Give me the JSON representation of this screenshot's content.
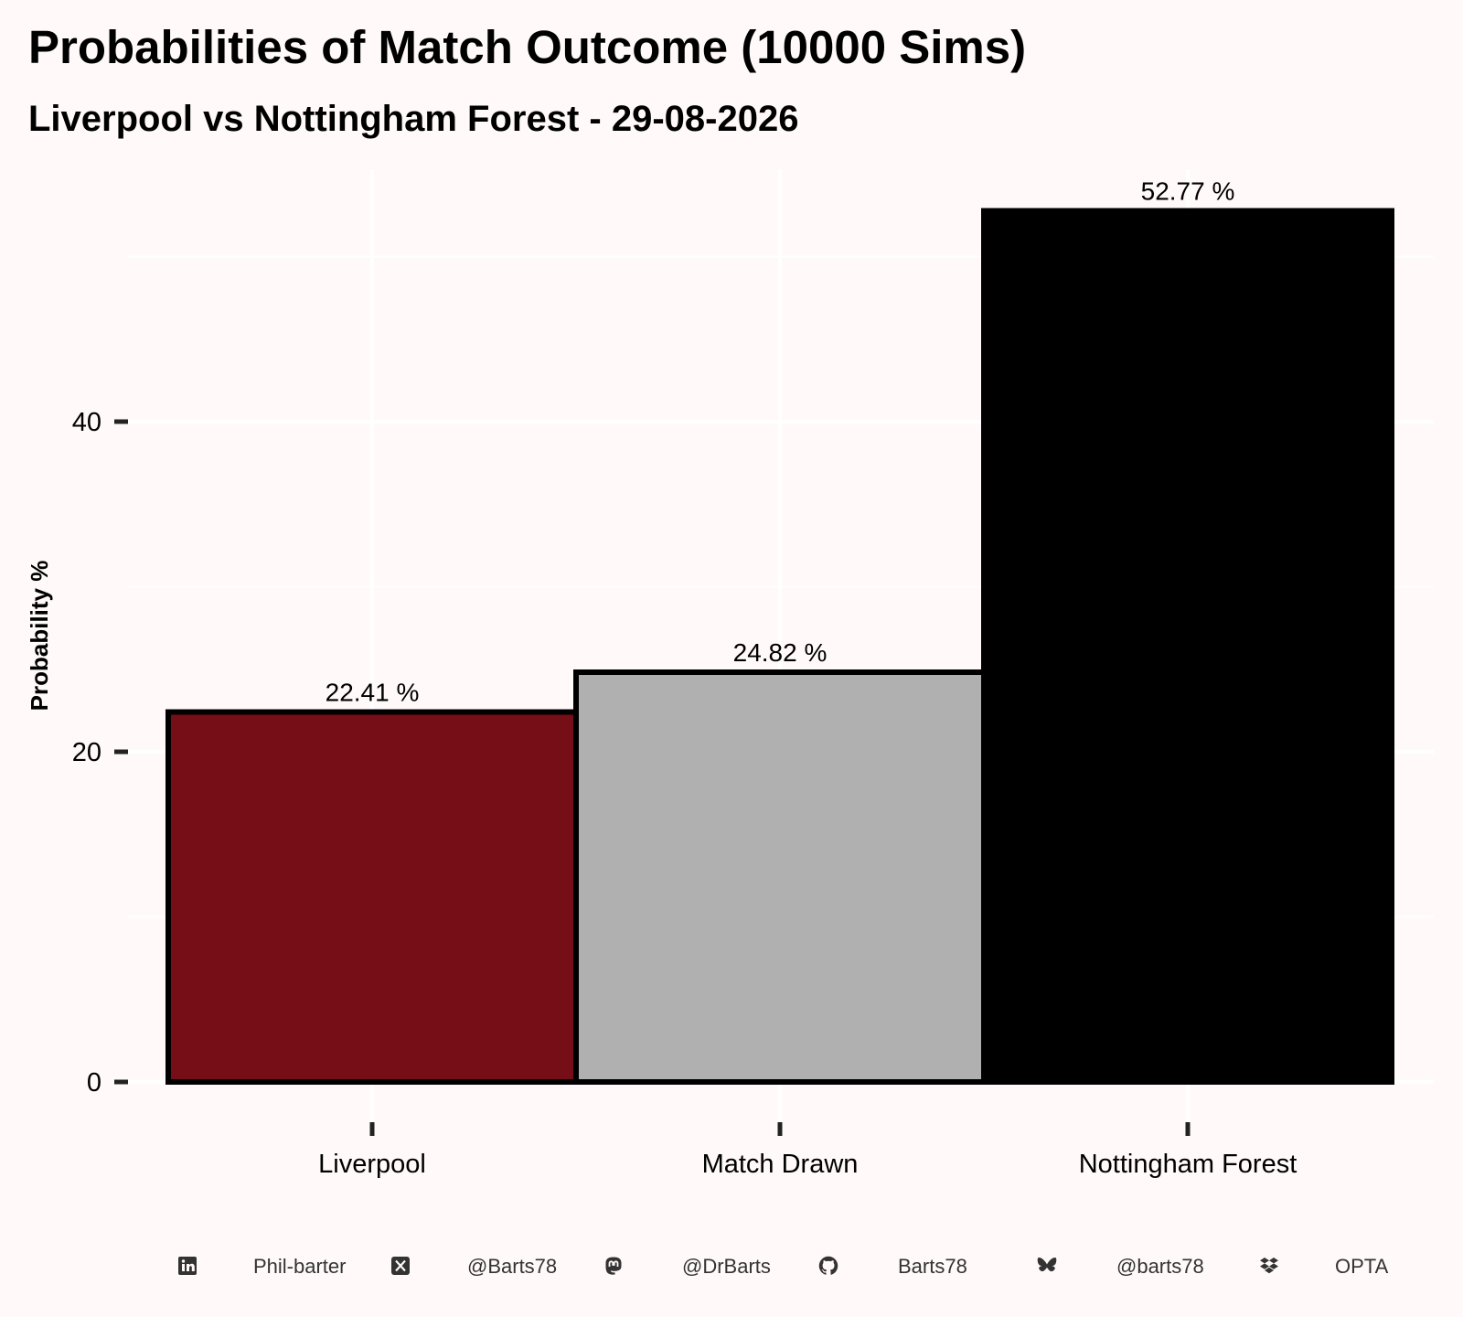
{
  "title": "Probabilities of Match Outcome (10000 Sims)",
  "subtitle": "Liverpool vs Nottingham Forest - 29-08-2026",
  "colors": {
    "background": "#fff9f9",
    "grid": "#ffffff",
    "outline": "#000000"
  },
  "chart_data": {
    "type": "bar",
    "categories": [
      "Liverpool",
      "Match Drawn",
      "Nottingham Forest"
    ],
    "values": [
      22.41,
      24.82,
      52.77
    ],
    "bar_labels": [
      "22.41  %",
      "24.82  %",
      "52.77  %"
    ],
    "bar_colors": [
      "#760e18",
      "#b0b0b0",
      "#000000"
    ],
    "xlabel": "",
    "ylabel": "Probability %",
    "yticks": [
      0,
      20,
      40
    ],
    "ylim": [
      0,
      55.4
    ],
    "grid": true
  },
  "footer": {
    "items": [
      {
        "icon": "linkedin-icon",
        "text": "Phil-barter"
      },
      {
        "icon": "x-twitter-icon",
        "text": "@Barts78"
      },
      {
        "icon": "mastodon-icon",
        "text": "@DrBarts"
      },
      {
        "icon": "github-icon",
        "text": "Barts78"
      },
      {
        "icon": "bluesky-icon",
        "text": "@barts78"
      },
      {
        "icon": "dropbox-icon",
        "text": "OPTA"
      }
    ]
  }
}
